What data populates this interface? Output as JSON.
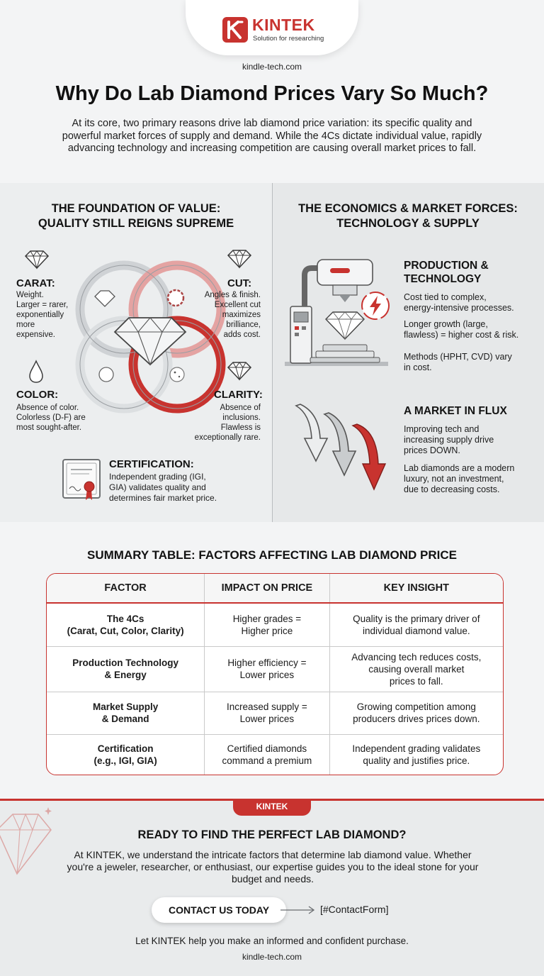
{
  "brand": {
    "name": "KINTEK",
    "tagline": "Solution for researching",
    "website": "kindle-tech.com",
    "accent_color": "#c8332f"
  },
  "title": "Why Do Lab Diamond Prices Vary So Much?",
  "intro": "At its core, two primary reasons drive lab diamond price variation: its specific quality and powerful market forces of supply and demand. While the 4Cs dictate individual value, rapidly advancing technology and increasing competition are causing overall market prices to fall.",
  "quality_section": {
    "title_line1": "THE FOUNDATION OF VALUE:",
    "title_line2": "QUALITY STILL REIGNS SUPREME",
    "carat": {
      "heading": "CARAT:",
      "lines": [
        "Weight.",
        "Larger = rarer,",
        "exponentially",
        "more",
        "expensive."
      ]
    },
    "cut": {
      "heading": "CUT:",
      "lines": [
        "Angles & finish.",
        "Excellent cut",
        "maximizes",
        "brilliance,",
        "adds cost."
      ]
    },
    "color": {
      "heading": "COLOR:",
      "lines": [
        "Absence of color.",
        "Colorless (D-F) are",
        "most sought-after."
      ]
    },
    "clarity": {
      "heading": "CLARITY:",
      "lines": [
        "Absence of",
        "inclusions.",
        "Flawless is",
        "exceptionally rare."
      ]
    },
    "certification": {
      "heading": "CERTIFICATION:",
      "lines": [
        "Independent grading (IGI,",
        "GIA) validates quality and",
        "determines fair market price."
      ]
    }
  },
  "market_section": {
    "title_line1": "THE ECONOMICS & MARKET FORCES:",
    "title_line2": "TECHNOLOGY & SUPPLY",
    "production": {
      "heading_line1": "PRODUCTION &",
      "heading_line2": "TECHNOLOGY",
      "points": [
        [
          "Cost tied to complex,",
          "energy-intensive processes."
        ],
        [
          "Longer growth (large,",
          "flawless) = higher cost & risk."
        ],
        [
          "Methods (HPHT, CVD) vary",
          "in cost."
        ]
      ]
    },
    "flux": {
      "heading": "A MARKET IN FLUX",
      "points": [
        [
          "Improving tech and",
          "increasing supply drive",
          "prices DOWN."
        ],
        [
          "Lab diamonds are a modern",
          "luxury, not an investment,",
          "due to decreasing costs."
        ]
      ]
    }
  },
  "summary": {
    "title": "SUMMARY TABLE: FACTORS AFFECTING LAB DIAMOND PRICE",
    "headers": [
      "FACTOR",
      "IMPACT ON PRICE",
      "KEY INSIGHT"
    ],
    "rows": [
      {
        "factor": [
          "The 4Cs",
          "(Carat, Cut, Color, Clarity)"
        ],
        "impact": [
          "Higher grades =",
          "Higher price"
        ],
        "insight": [
          "Quality is the primary driver of",
          "individual diamond value."
        ]
      },
      {
        "factor": [
          "Production Technology",
          "& Energy"
        ],
        "impact": [
          "Higher efficiency =",
          "Lower prices"
        ],
        "insight": [
          "Advancing tech reduces costs,",
          "causing overall market",
          "prices to fall."
        ]
      },
      {
        "factor": [
          "Market Supply",
          "& Demand"
        ],
        "impact": [
          "Increased supply =",
          "Lower prices"
        ],
        "insight": [
          "Growing competition among",
          "producers drives prices down."
        ]
      },
      {
        "factor": [
          "Certification",
          "(e.g., IGI, GIA)"
        ],
        "impact": [
          "Certified diamonds",
          "command a premium"
        ],
        "insight": [
          "Independent grading validates",
          "quality and justifies price."
        ]
      }
    ]
  },
  "cta": {
    "badge": "KINTEK",
    "title": "READY TO FIND THE PERFECT LAB DIAMOND?",
    "text": "At KINTEK, we understand the intricate factors that determine lab diamond value. Whether you're a jeweler, researcher, or enthusiast, our expertise guides you to the ideal stone for your budget and needs.",
    "button": "CONTACT US TODAY",
    "link": "[#ContactForm]",
    "closing": "Let KINTEK help you make an informed and confident purchase."
  },
  "icons": {
    "logo": "kintek-logo-icon",
    "carat": "diamond-outline-icon",
    "cut": "diamond-outline-icon",
    "color": "water-drop-icon",
    "clarity": "diamond-outline-icon",
    "certification": "certificate-icon",
    "center": "diamond-venn-icon",
    "production": "diamond-growth-machine-icon",
    "energy": "lightning-bolt-icon",
    "flux": "down-arrows-icon"
  }
}
